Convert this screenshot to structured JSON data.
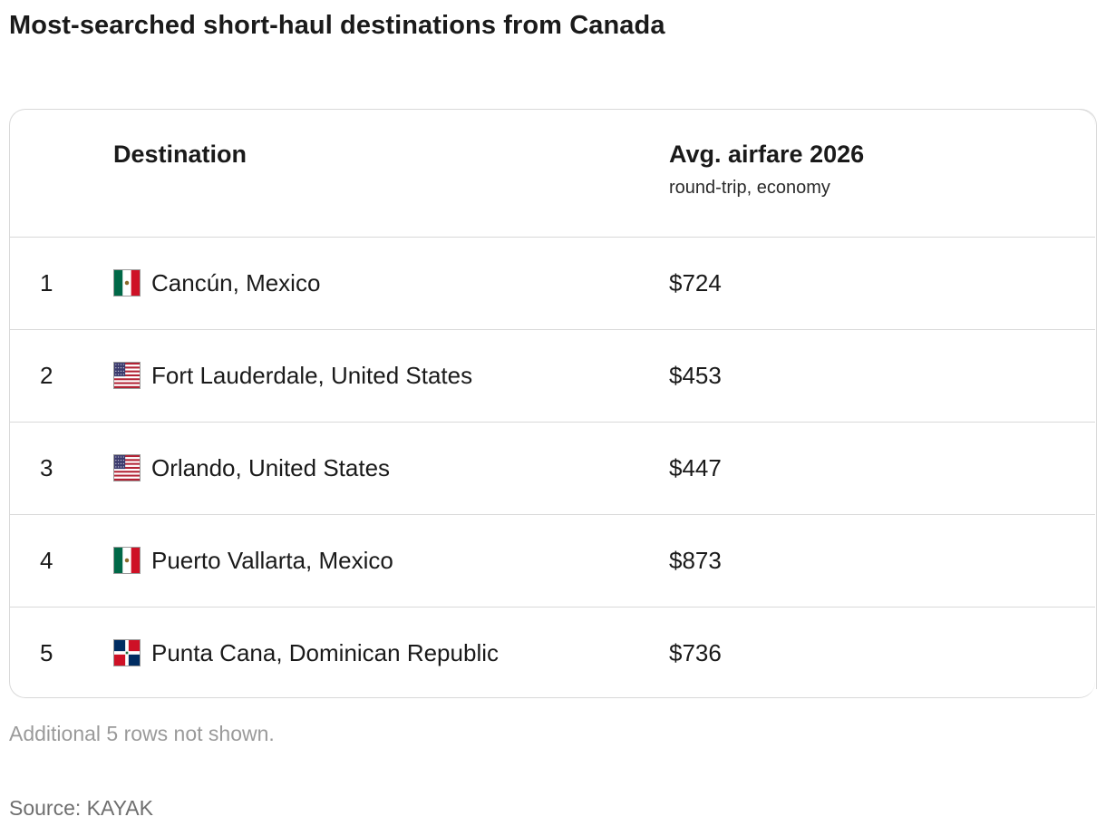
{
  "title": "Most-searched short-haul destinations from Canada",
  "chart_data": {
    "type": "table",
    "columns": [
      {
        "label": "",
        "key": "rank"
      },
      {
        "label": "Destination",
        "key": "destination"
      },
      {
        "label": "Avg. airfare 2026",
        "sublabel": "round-trip, economy",
        "key": "airfare"
      }
    ],
    "rows": [
      {
        "rank": "1",
        "destination": "Cancún, Mexico",
        "flag": "mexico-flag",
        "airfare": "$724",
        "value": 724
      },
      {
        "rank": "2",
        "destination": "Fort Lauderdale, United States",
        "flag": "us-flag",
        "airfare": "$453",
        "value": 453
      },
      {
        "rank": "3",
        "destination": "Orlando, United States",
        "flag": "us-flag",
        "airfare": "$447",
        "value": 447
      },
      {
        "rank": "4",
        "destination": "Puerto Vallarta, Mexico",
        "flag": "mexico-flag",
        "airfare": "$873",
        "value": 873
      },
      {
        "rank": "5",
        "destination": "Punta Cana, Dominican Republic",
        "flag": "dominican-republic-flag",
        "airfare": "$736",
        "value": 736
      }
    ]
  },
  "footnote": "Additional 5 rows not shown.",
  "source": "Source: KAYAK",
  "colors": {
    "text": "#1a1a1a",
    "border": "#d9d9d9",
    "muted": "#9a9a9a",
    "mexico_green": "#006847",
    "mexico_red": "#ce1126",
    "us_blue": "#3c3b6e",
    "us_red": "#b22234",
    "dr_blue": "#002d62",
    "dr_red": "#ce1126"
  }
}
